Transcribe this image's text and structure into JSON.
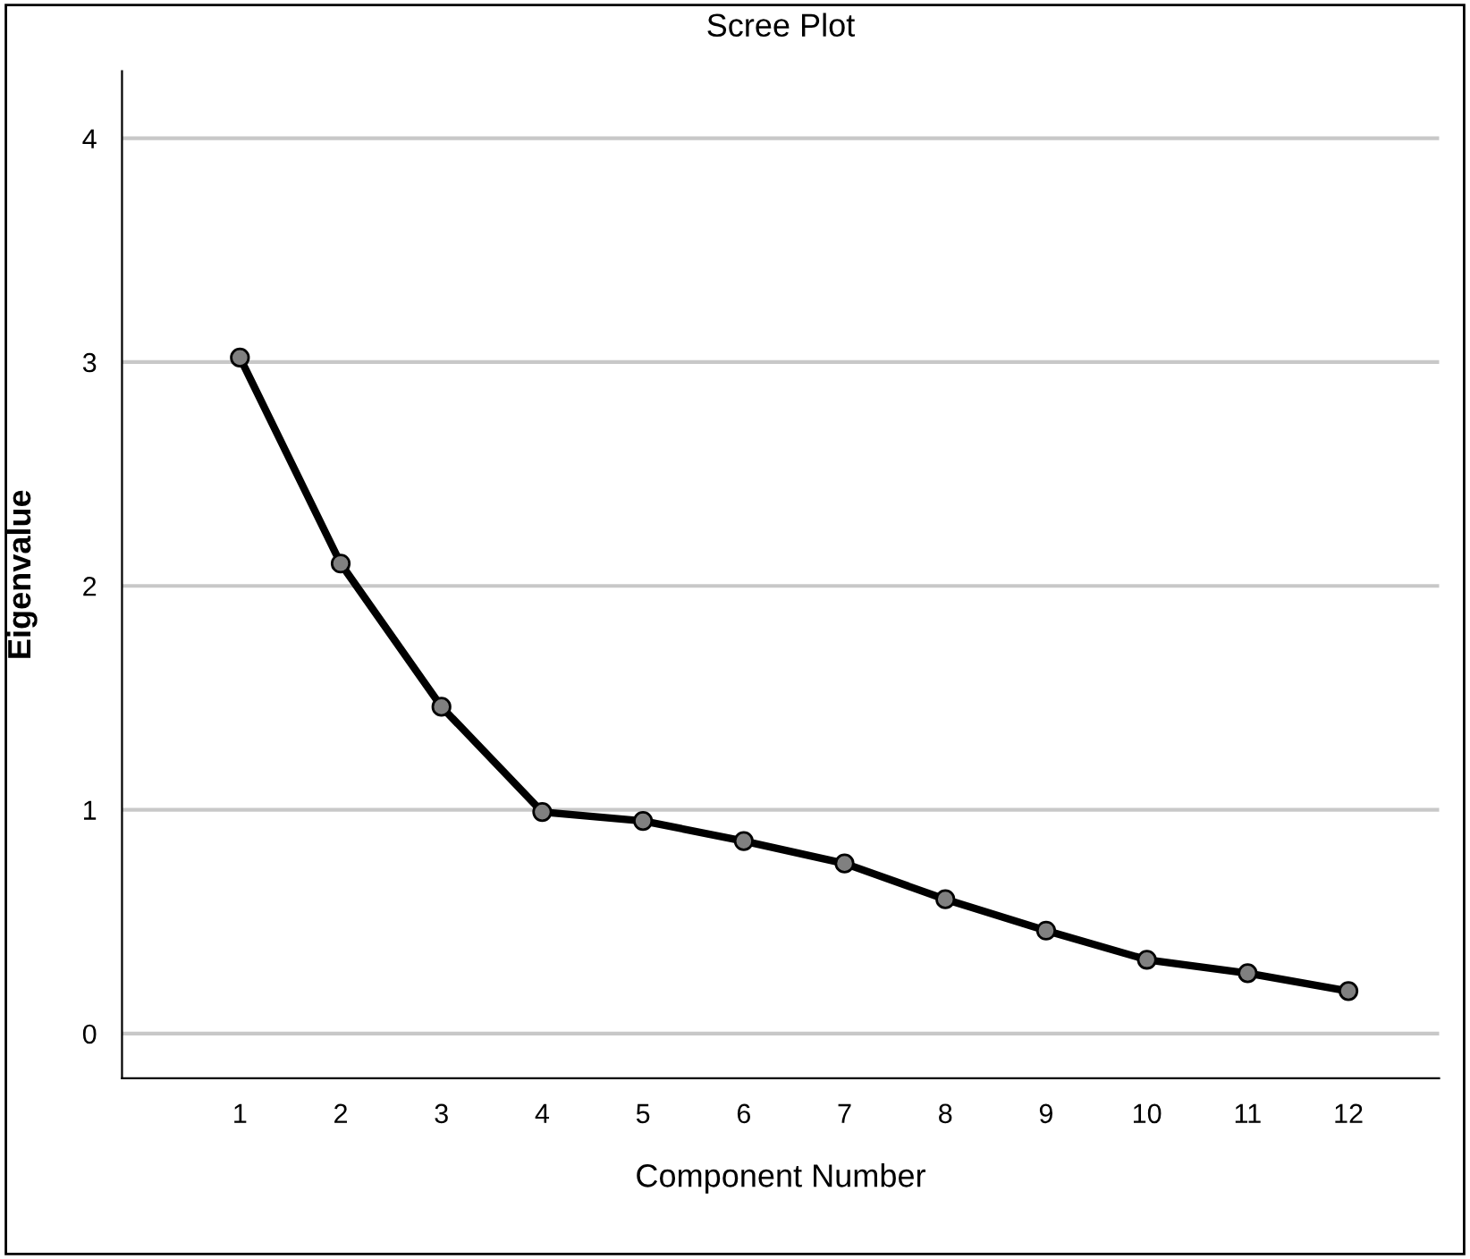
{
  "chart_data": {
    "type": "line",
    "title": "Scree Plot",
    "xlabel": "Component Number",
    "ylabel": "Eigenvalue",
    "categories": [
      "1",
      "2",
      "3",
      "4",
      "5",
      "6",
      "7",
      "8",
      "9",
      "10",
      "11",
      "12"
    ],
    "series": [
      {
        "color": "#000000",
        "values": [
          3.02,
          2.1,
          1.46,
          0.99,
          0.95,
          0.86,
          0.76,
          0.6,
          0.46,
          0.33,
          0.27,
          0.19
        ]
      }
    ],
    "ylim": [
      -0.2,
      4.3
    ],
    "yticks": [
      0,
      1,
      2,
      3,
      4
    ],
    "grid": "y",
    "marker": "circle",
    "line_style": "solid",
    "legend": false
  }
}
